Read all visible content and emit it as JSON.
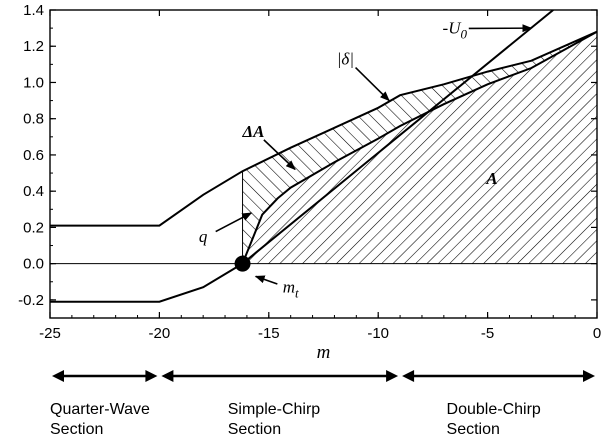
{
  "chart_data": {
    "type": "line",
    "xlabel": "m",
    "ylabel": "",
    "xlim": [
      -25,
      0
    ],
    "ylim": [
      -0.3,
      1.4
    ],
    "xticks": [
      -25,
      -20,
      -15,
      -10,
      -5,
      0
    ],
    "yticks": [
      -0.2,
      0.0,
      0.2,
      0.4,
      0.6,
      0.8,
      1.0,
      1.2,
      1.4
    ],
    "xtick_labels": [
      "-25",
      "-20",
      "-15",
      "-10",
      "-5",
      "0"
    ],
    "ytick_labels": [
      "-0.2",
      "0.0",
      "0.2",
      "0.4",
      "0.6",
      "0.8",
      "1.0",
      "1.2",
      "1.4"
    ],
    "grid": false,
    "series": [
      {
        "name": "|δ|",
        "x": [
          -25,
          -20,
          -18,
          -16.2,
          -14,
          -12,
          -10,
          -9,
          -7,
          -5,
          -3,
          0
        ],
        "y": [
          0.21,
          0.21,
          0.38,
          0.51,
          0.64,
          0.75,
          0.86,
          0.93,
          0.99,
          1.06,
          1.12,
          1.28
        ]
      },
      {
        "name": "lower |δ| branch",
        "x": [
          -25,
          -20,
          -18,
          -16.2
        ],
        "y": [
          -0.21,
          -0.21,
          -0.13,
          0.0
        ]
      },
      {
        "name": "-U0",
        "x": [
          -16.2,
          -2
        ],
        "y": [
          0.0,
          1.4
        ]
      },
      {
        "name": "q",
        "x": [
          -16.2,
          -15.8,
          -15.3,
          -14.6,
          -14,
          -12,
          -10,
          -9,
          -7,
          -5,
          -3,
          0
        ],
        "y": [
          0.0,
          0.12,
          0.27,
          0.36,
          0.42,
          0.56,
          0.69,
          0.76,
          0.88,
          0.99,
          1.08,
          1.28
        ]
      }
    ],
    "shaded_regions": [
      {
        "name": "ΔA",
        "between": [
          "|δ|",
          "q"
        ],
        "x_range": [
          -16.2,
          0
        ]
      },
      {
        "name": "A",
        "between": [
          "q",
          "zero-line"
        ],
        "x_range": [
          -16.2,
          0
        ]
      }
    ],
    "point": {
      "name": "m_t",
      "x": -16.2,
      "y": 0.0
    },
    "annotations": [
      {
        "text": "|δ|",
        "x": -11.5,
        "y": 1.1,
        "arrow_to": [
          -9.5,
          0.9
        ]
      },
      {
        "text": "-U",
        "subscript": "0",
        "x": -6.5,
        "y": 1.27,
        "arrow_to": [
          -3.0,
          1.3
        ]
      },
      {
        "text": "ΔA",
        "x": -15.7,
        "y": 0.7,
        "arrow_to": [
          -13.8,
          0.52
        ]
      },
      {
        "text": "A",
        "x": -4.8,
        "y": 0.44
      },
      {
        "text": "q",
        "x": -18.0,
        "y": 0.12,
        "arrow_to": [
          -15.8,
          0.28
        ]
      },
      {
        "text": "m",
        "subscript": "t",
        "x": -14.0,
        "y": -0.16,
        "arrow_to": [
          -15.6,
          -0.07
        ]
      }
    ]
  },
  "sections": [
    {
      "line1": "Quarter-Wave",
      "line2": "Section",
      "x_range": [
        -25,
        -20
      ]
    },
    {
      "line1": "Simple-Chirp",
      "line2": "Section",
      "x_range": [
        -20,
        -9
      ]
    },
    {
      "line1": "Double-Chirp",
      "line2": "Section",
      "x_range": [
        -9,
        0
      ]
    }
  ]
}
